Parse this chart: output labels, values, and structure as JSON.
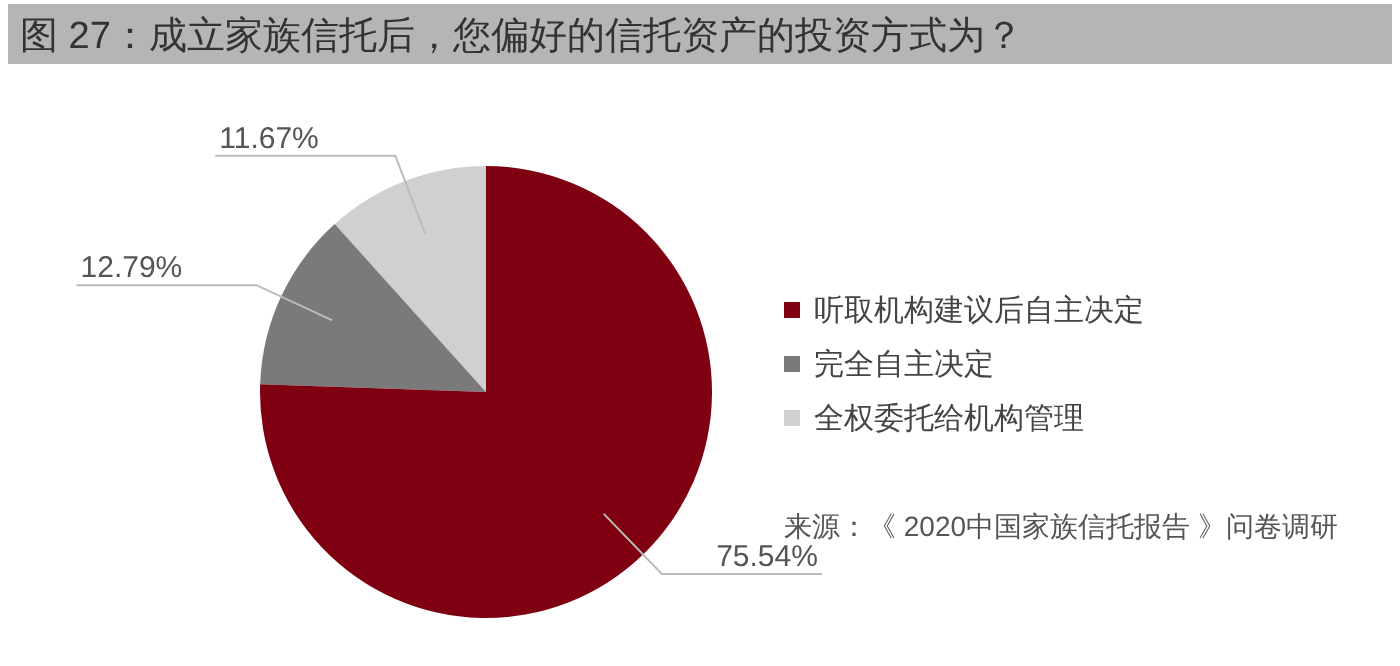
{
  "chart_data": {
    "type": "pie",
    "title": "图 27：成立家族信托后，您偏好的信托资产的投资方式为？",
    "categories": [
      "听取机构建议后自主决定",
      "完全自主决定",
      "全权委托给机构管理"
    ],
    "values": [
      75.54,
      12.79,
      11.67
    ],
    "colors": [
      "#7f0010",
      "#7a7a7a",
      "#d0d0d0"
    ],
    "value_labels": [
      "75.54%",
      "12.79%",
      "11.67%"
    ],
    "legend": "right",
    "annotations": [
      "来源：《 2020中国家族信托报告 》问卷调研"
    ]
  }
}
